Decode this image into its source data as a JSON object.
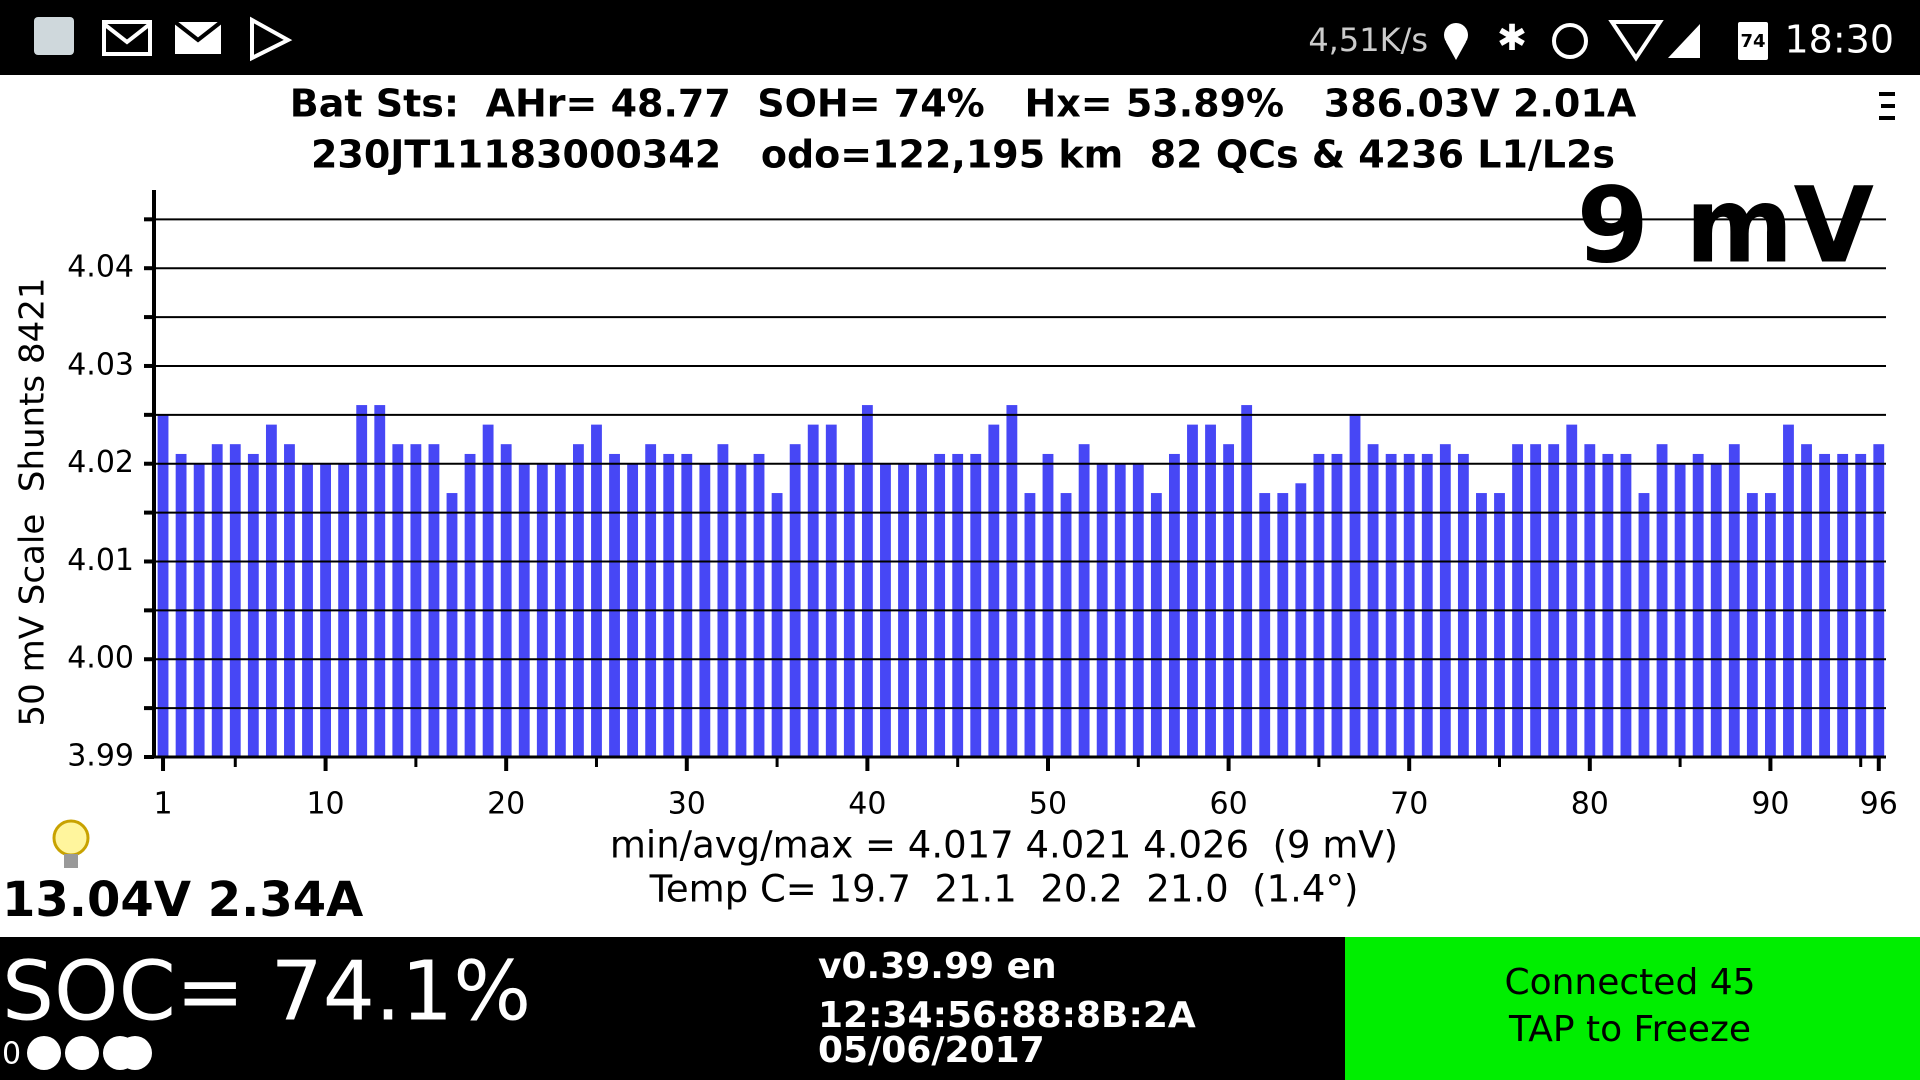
{
  "status_bar": {
    "net_speed": "4,51K/s",
    "battery": "74",
    "time": "18:30"
  },
  "header": {
    "line1": "Bat Sts:  AHr= 48.77  SOH= 74%   Hx= 53.89%   386.03V 2.01A",
    "line2": "230JT11183000342   odo=122,195 km  82 QCs & 4236 L1/L2s"
  },
  "chart_data": {
    "type": "bar",
    "annotation": "9 mV",
    "ylabel": "50 mV Scale  Shunts 8421",
    "color": "#4747f5",
    "grid": true,
    "x": [
      1,
      2,
      3,
      4,
      5,
      6,
      7,
      8,
      9,
      10,
      11,
      12,
      13,
      14,
      15,
      16,
      17,
      18,
      19,
      20,
      21,
      22,
      23,
      24,
      25,
      26,
      27,
      28,
      29,
      30,
      31,
      32,
      33,
      34,
      35,
      36,
      37,
      38,
      39,
      40,
      41,
      42,
      43,
      44,
      45,
      46,
      47,
      48,
      49,
      50,
      51,
      52,
      53,
      54,
      55,
      56,
      57,
      58,
      59,
      60,
      61,
      62,
      63,
      64,
      65,
      66,
      67,
      68,
      69,
      70,
      71,
      72,
      73,
      74,
      75,
      76,
      77,
      78,
      79,
      80,
      81,
      82,
      83,
      84,
      85,
      86,
      87,
      88,
      89,
      90,
      91,
      92,
      93,
      94,
      95,
      96
    ],
    "values": [
      4.025,
      4.021,
      4.02,
      4.022,
      4.022,
      4.021,
      4.024,
      4.022,
      4.02,
      4.02,
      4.02,
      4.026,
      4.026,
      4.022,
      4.022,
      4.022,
      4.017,
      4.021,
      4.024,
      4.022,
      4.02,
      4.02,
      4.02,
      4.022,
      4.024,
      4.021,
      4.02,
      4.022,
      4.021,
      4.021,
      4.02,
      4.022,
      4.02,
      4.021,
      4.017,
      4.022,
      4.024,
      4.024,
      4.02,
      4.026,
      4.02,
      4.02,
      4.02,
      4.021,
      4.021,
      4.021,
      4.024,
      4.026,
      4.017,
      4.021,
      4.017,
      4.022,
      4.02,
      4.02,
      4.02,
      4.017,
      4.021,
      4.024,
      4.024,
      4.022,
      4.026,
      4.017,
      4.017,
      4.018,
      4.021,
      4.021,
      4.025,
      4.022,
      4.021,
      4.021,
      4.021,
      4.022,
      4.021,
      4.017,
      4.017,
      4.022,
      4.022,
      4.022,
      4.024,
      4.022,
      4.021,
      4.021,
      4.017,
      4.022,
      4.02,
      4.021,
      4.02,
      4.022,
      4.017,
      4.017,
      4.024,
      4.022,
      4.021,
      4.021,
      4.021,
      4.022
    ],
    "xlim": [
      0.5,
      96.4
    ],
    "xticks": [
      1,
      10,
      20,
      30,
      40,
      50,
      60,
      70,
      80,
      90,
      96
    ],
    "minor_xticks": [
      5,
      15,
      25,
      35,
      45,
      55,
      65,
      75,
      85,
      95
    ],
    "ylim": [
      3.99,
      4.048
    ],
    "yticks": [
      3.99,
      {
        "value": 4.0,
        "label": "4.00"
      },
      4.01,
      4.02,
      4.03,
      4.04
    ],
    "minor_yticks": [
      3.995,
      4.005,
      4.015,
      4.025,
      4.035,
      4.045
    ]
  },
  "stats": {
    "line1": "min/avg/max = 4.017 4.021 4.026  (9 mV)",
    "line2": "Temp C= 19.7  21.1  20.2  21.0  (1.4°)"
  },
  "aux": "13.04V 2.34A",
  "soc": "SOC= 74.1%",
  "soc_count": "0",
  "version": "v0.39.99 en",
  "mac": "12:34:56:88:8B:2A",
  "date": "05/06/2017",
  "status": {
    "line1": "Connected 45",
    "line2": "TAP to Freeze"
  }
}
